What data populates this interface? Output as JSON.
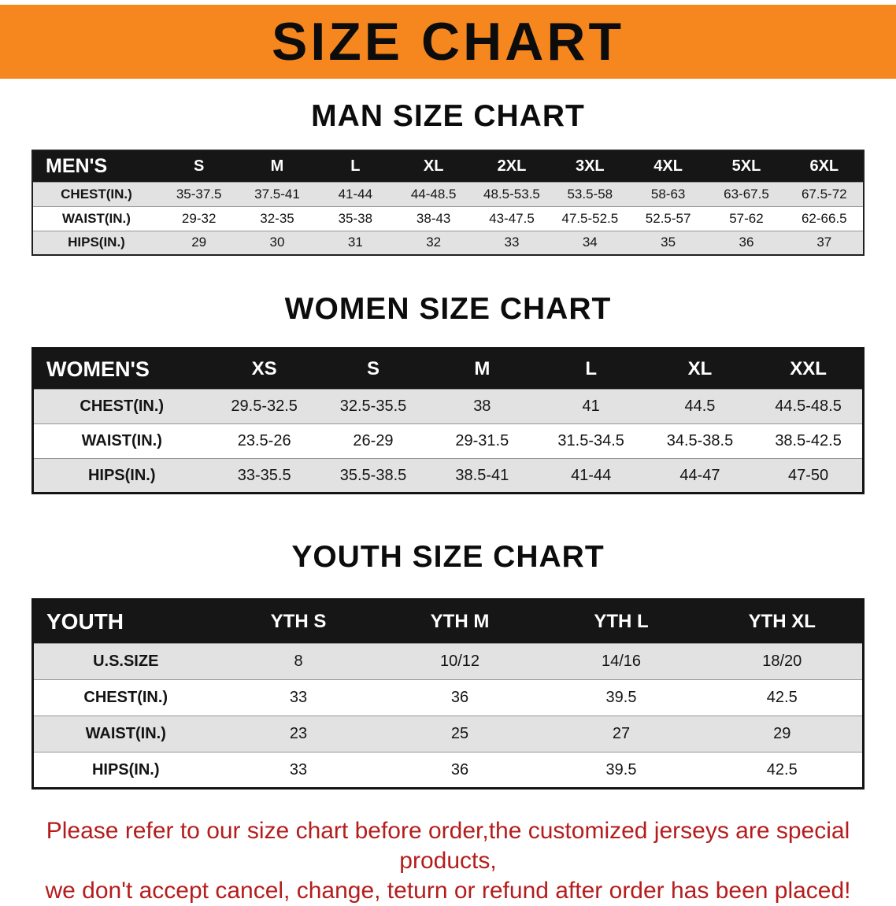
{
  "colors": {
    "banner_bg": "#f6871f",
    "table_header_bg": "#161616",
    "row_stripe": "#e2e2e2",
    "note_color": "#b51d1d"
  },
  "banner": {
    "title": "SIZE CHART"
  },
  "sections": [
    {
      "heading": "MAN SIZE CHART",
      "table": {
        "header": [
          "MEN'S",
          "S",
          "M",
          "L",
          "XL",
          "2XL",
          "3XL",
          "4XL",
          "5XL",
          "6XL"
        ],
        "rows": [
          [
            "CHEST(IN.)",
            "35-37.5",
            "37.5-41",
            "41-44",
            "44-48.5",
            "48.5-53.5",
            "53.5-58",
            "58-63",
            "63-67.5",
            "67.5-72"
          ],
          [
            "WAIST(IN.)",
            "29-32",
            "32-35",
            "35-38",
            "38-43",
            "43-47.5",
            "47.5-52.5",
            "52.5-57",
            "57-62",
            "62-66.5"
          ],
          [
            "HIPS(IN.)",
            "29",
            "30",
            "31",
            "32",
            "33",
            "34",
            "35",
            "36",
            "37"
          ]
        ]
      }
    },
    {
      "heading": "WOMEN SIZE CHART",
      "table": {
        "header": [
          "WOMEN'S",
          "XS",
          "S",
          "M",
          "L",
          "XL",
          "XXL"
        ],
        "rows": [
          [
            "CHEST(IN.)",
            "29.5-32.5",
            "32.5-35.5",
            "38",
            "41",
            "44.5",
            "44.5-48.5"
          ],
          [
            "WAIST(IN.)",
            "23.5-26",
            "26-29",
            "29-31.5",
            "31.5-34.5",
            "34.5-38.5",
            "38.5-42.5"
          ],
          [
            "HIPS(IN.)",
            "33-35.5",
            "35.5-38.5",
            "38.5-41",
            "41-44",
            "44-47",
            "47-50"
          ]
        ]
      }
    },
    {
      "heading": "YOUTH SIZE CHART",
      "table": {
        "header": [
          "YOUTH",
          "YTH S",
          "YTH M",
          "YTH L",
          "YTH XL"
        ],
        "rows": [
          [
            "U.S.SIZE",
            "8",
            "10/12",
            "14/16",
            "18/20"
          ],
          [
            "CHEST(IN.)",
            "33",
            "36",
            "39.5",
            "42.5"
          ],
          [
            "WAIST(IN.)",
            "23",
            "25",
            "27",
            "29"
          ],
          [
            "HIPS(IN.)",
            "33",
            "36",
            "39.5",
            "42.5"
          ]
        ]
      }
    }
  ],
  "note": {
    "line1": "Please refer to our size chart before order,the customized jerseys are special products,",
    "line2": "we don't accept cancel, change, teturn or refund after order has been placed!"
  }
}
